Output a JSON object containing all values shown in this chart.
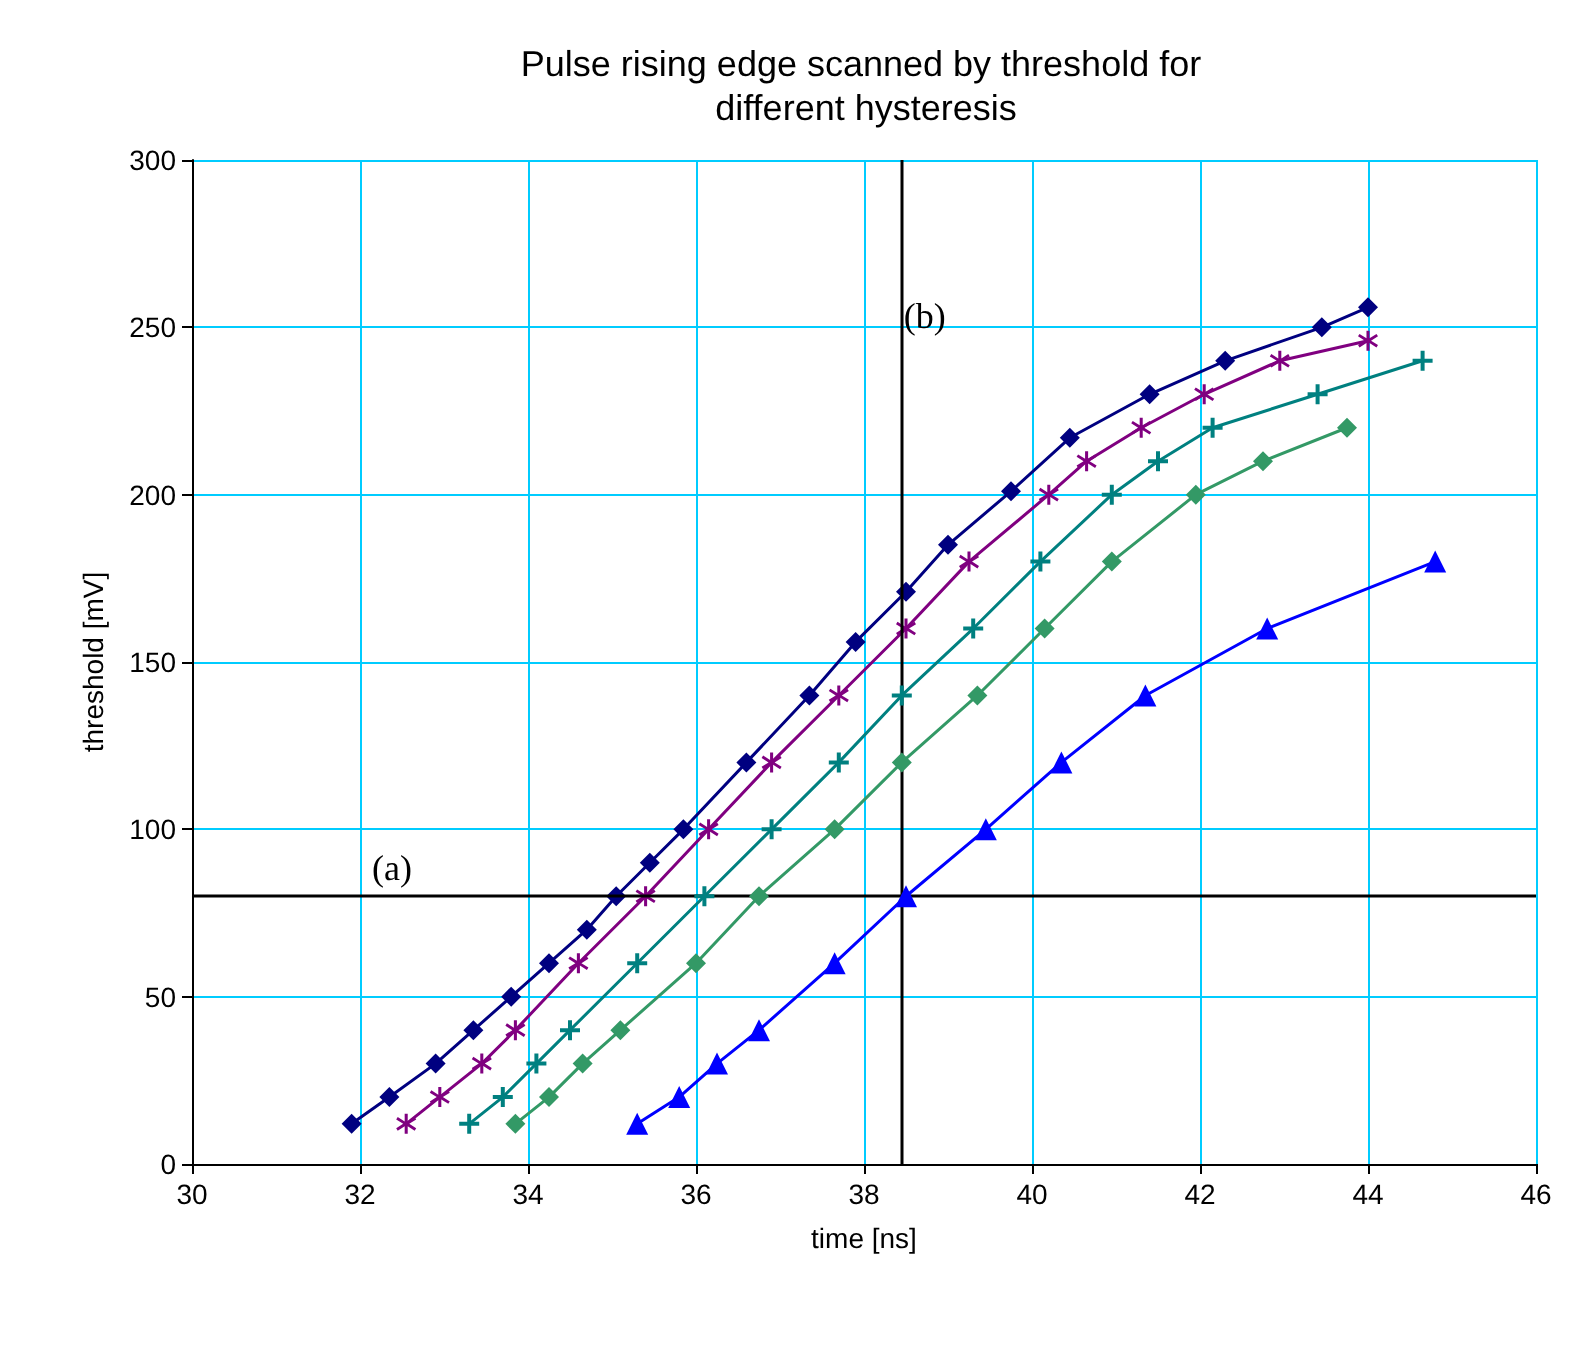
{
  "chart_data": {
    "type": "line",
    "title": "Pulse rising edge scanned by threshold for different hysteresis",
    "xlabel": "time [ns]",
    "ylabel": "threshold [mV]",
    "xlim": [
      30,
      46
    ],
    "xticks": [
      30,
      32,
      34,
      36,
      38,
      40,
      42,
      44,
      46
    ],
    "ylim": [
      0,
      300
    ],
    "yticks": [
      0,
      50,
      100,
      150,
      200,
      250,
      300
    ],
    "grid": true,
    "line_style": "solid",
    "series": [
      {
        "color": "#000080",
        "marker": "diamond",
        "x": [
          31.9,
          32.35,
          32.9,
          33.35,
          33.8,
          34.25,
          34.7,
          35.05,
          35.45,
          35.85,
          36.6,
          37.35,
          37.9,
          38.5,
          39.0,
          39.75,
          40.45,
          41.4,
          42.3,
          43.45,
          44.0
        ],
        "values": [
          12,
          20,
          30,
          40,
          50,
          60,
          70,
          80,
          90,
          100,
          120,
          140,
          156,
          171,
          185,
          201,
          217,
          230,
          240,
          250,
          256
        ]
      },
      {
        "color": "#800080",
        "marker": "star",
        "x": [
          32.55,
          32.95,
          33.45,
          33.85,
          34.6,
          35.4,
          36.15,
          36.9,
          37.7,
          38.5,
          39.25,
          40.2,
          40.65,
          41.3,
          42.05,
          42.95,
          44.0
        ],
        "values": [
          12,
          20,
          30,
          40,
          60,
          80,
          100,
          120,
          140,
          160,
          180,
          200,
          210,
          220,
          230,
          240,
          246
        ]
      },
      {
        "color": "#008080",
        "marker": "cross",
        "x": [
          33.3,
          33.7,
          34.1,
          34.5,
          35.3,
          36.1,
          36.9,
          37.7,
          38.45,
          39.3,
          40.1,
          40.95,
          41.5,
          42.15,
          43.4,
          44.65
        ],
        "values": [
          12,
          20,
          30,
          40,
          60,
          80,
          100,
          120,
          140,
          160,
          180,
          200,
          210,
          220,
          230,
          240
        ]
      },
      {
        "color": "#339966",
        "marker": "diamond",
        "x": [
          33.85,
          34.25,
          34.65,
          35.1,
          36.0,
          36.75,
          37.65,
          38.45,
          39.35,
          40.15,
          40.95,
          41.95,
          42.75,
          43.75
        ],
        "values": [
          12,
          20,
          30,
          40,
          60,
          80,
          100,
          120,
          140,
          160,
          180,
          200,
          210,
          220
        ]
      },
      {
        "color": "#0000ff",
        "marker": "triangle",
        "x": [
          35.3,
          35.8,
          36.25,
          36.75,
          37.65,
          38.5,
          39.45,
          40.35,
          41.35,
          42.8,
          44.8
        ],
        "values": [
          12,
          20,
          30,
          40,
          60,
          80,
          100,
          120,
          140,
          160,
          180
        ]
      }
    ],
    "ref_lines": [
      {
        "axis": "y",
        "value": 80,
        "label": "(a)",
        "color": "#000000",
        "line_style": "solid"
      },
      {
        "axis": "x",
        "value": 38.45,
        "label": "(b)",
        "color": "#000000",
        "line_style": "solid"
      }
    ]
  }
}
